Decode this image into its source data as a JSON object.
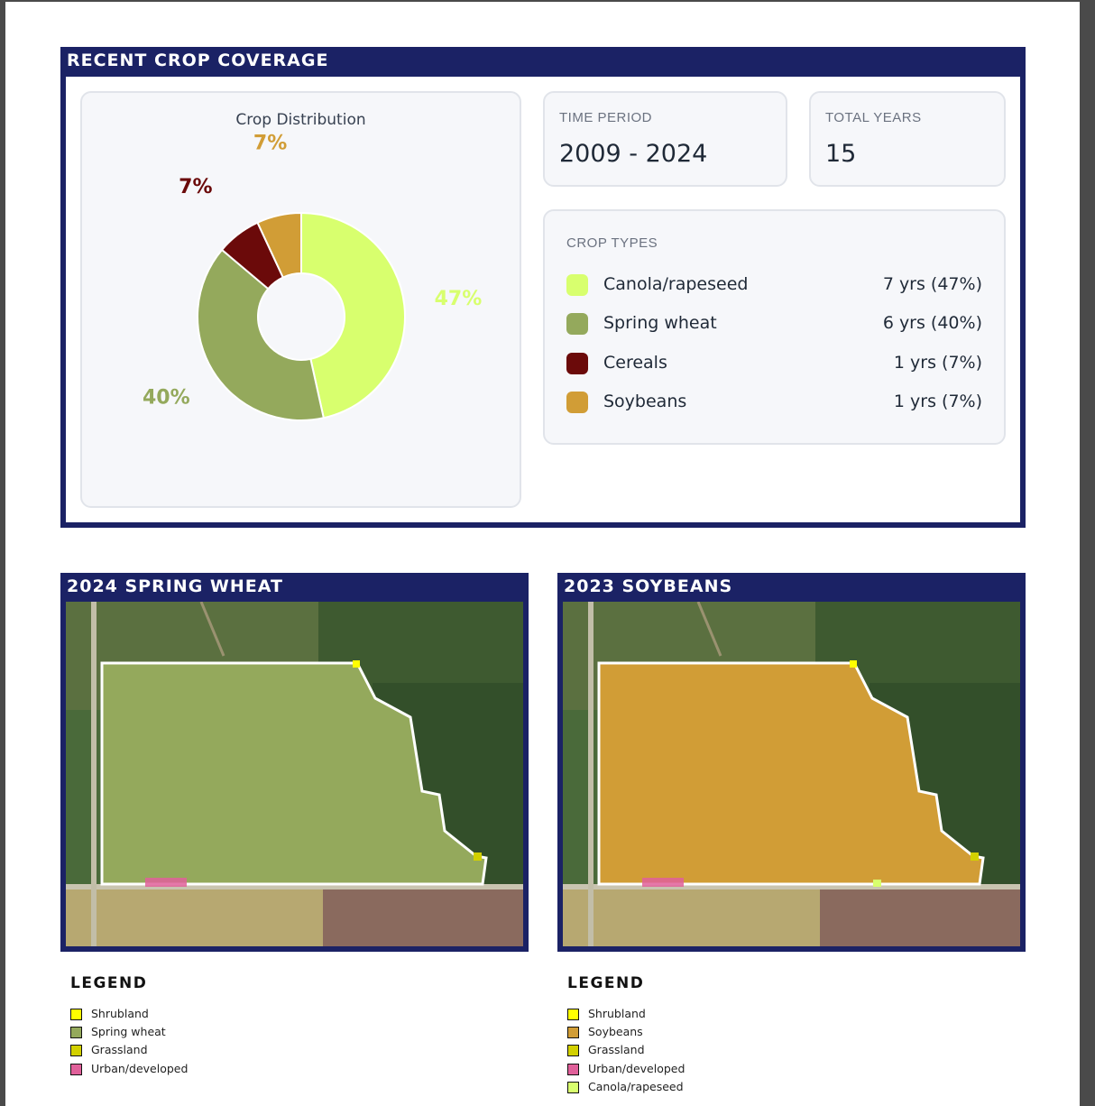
{
  "coverage": {
    "title": "RECENT CROP COVERAGE",
    "chart_title": "Crop Distribution",
    "time_period_label": "TIME PERIOD",
    "time_period_value": "2009 - 2024",
    "total_years_label": "TOTAL YEARS",
    "total_years_value": "15",
    "crop_types_label": "CROP TYPES",
    "crops": [
      {
        "name": "Canola/rapeseed",
        "value": "7 yrs (47%)",
        "color": "#d8ff6e"
      },
      {
        "name": "Spring wheat",
        "value": "6 yrs (40%)",
        "color": "#94a95c"
      },
      {
        "name": "Cereals",
        "value": "1 yrs (7%)",
        "color": "#6b0a0a"
      },
      {
        "name": "Soybeans",
        "value": "1 yrs (7%)",
        "color": "#d19d36"
      }
    ]
  },
  "chart_data": {
    "type": "pie",
    "title": "Crop Distribution",
    "categories": [
      "Canola/rapeseed",
      "Spring wheat",
      "Cereals",
      "Soybeans"
    ],
    "values": [
      47,
      40,
      7,
      7
    ],
    "labels": [
      "47%",
      "40%",
      "7%",
      "7%"
    ],
    "colors": [
      "#d8ff6e",
      "#94a95c",
      "#6b0a0a",
      "#d19d36"
    ]
  },
  "maps": [
    {
      "title": "2024 SPRING WHEAT",
      "fill_color": "#94a95c",
      "legend_title": "LEGEND",
      "legend": [
        {
          "label": "Shrubland",
          "color": "#ffff00"
        },
        {
          "label": "Spring wheat",
          "color": "#94a95c"
        },
        {
          "label": "Grassland",
          "color": "#d2d000"
        },
        {
          "label": "Urban/developed",
          "color": "#e0609a"
        }
      ]
    },
    {
      "title": "2023 SOYBEANS",
      "fill_color": "#d19d36",
      "legend_title": "LEGEND",
      "legend": [
        {
          "label": "Shrubland",
          "color": "#ffff00"
        },
        {
          "label": "Soybeans",
          "color": "#d19d36"
        },
        {
          "label": "Grassland",
          "color": "#d2d000"
        },
        {
          "label": "Urban/developed",
          "color": "#e0609a"
        },
        {
          "label": "Canola/rapeseed",
          "color": "#d8ff6e"
        }
      ]
    }
  ]
}
